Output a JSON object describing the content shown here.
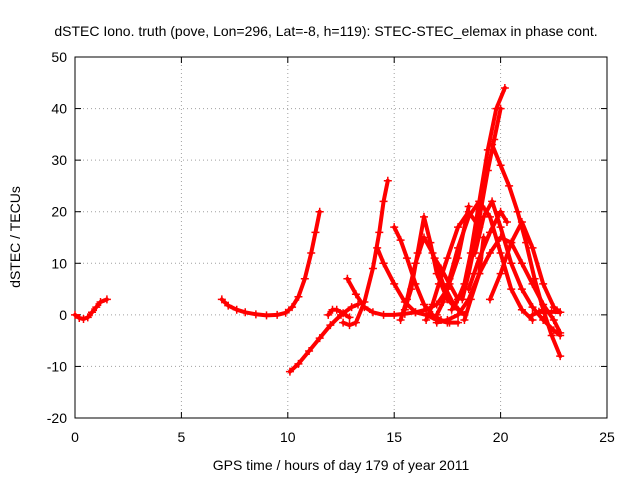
{
  "chart_data": {
    "type": "scatter",
    "title": "dSTEC Iono. truth (pove, Lon=296, Lat=-8, h=119): STEC-STEC_elemax in phase cont.",
    "xlabel": "GPS time / hours of day 179 of year 2011",
    "ylabel": "dSTEC  / TECUs",
    "xlim": [
      0,
      25
    ],
    "ylim": [
      -20,
      50
    ],
    "xticks": [
      0,
      5,
      10,
      15,
      20,
      25
    ],
    "yticks": [
      -20,
      -10,
      0,
      10,
      20,
      30,
      40,
      50
    ],
    "grid": true,
    "marker": "plus",
    "color": "#ff0000",
    "arcs": [
      {
        "x": [
          0.0,
          0.2,
          0.4,
          0.6,
          0.8,
          1.0,
          1.2,
          1.5
        ],
        "y": [
          0.0,
          -0.6,
          -0.8,
          -0.5,
          0.5,
          1.5,
          2.5,
          3.0
        ]
      },
      {
        "x": [
          6.9,
          7.2,
          7.6,
          8.0,
          8.5,
          9.0,
          9.5,
          9.9,
          10.2,
          10.5,
          10.8,
          11.1,
          11.3,
          11.5
        ],
        "y": [
          3.0,
          1.8,
          1.0,
          0.5,
          0.1,
          -0.1,
          0.0,
          0.4,
          1.5,
          3.5,
          7.0,
          12.0,
          16.0,
          20.0
        ]
      },
      {
        "x": [
          10.1,
          10.5,
          11.0,
          11.5,
          12.0,
          12.5,
          13.0,
          13.3
        ],
        "y": [
          -11.0,
          -9.5,
          -7.0,
          -4.5,
          -2.0,
          0.0,
          1.5,
          2.0
        ]
      },
      {
        "x": [
          11.9,
          12.1,
          12.3,
          12.6,
          12.9
        ],
        "y": [
          0.0,
          1.0,
          1.0,
          0.3,
          -0.5
        ]
      },
      {
        "x": [
          12.6,
          12.9,
          13.2,
          13.6,
          14.0,
          14.3,
          14.5,
          14.7
        ],
        "y": [
          -1.5,
          -2.0,
          -1.5,
          2.5,
          9.0,
          16.0,
          22.0,
          26.0
        ]
      },
      {
        "x": [
          12.8,
          13.2,
          13.6,
          14.0,
          14.5,
          15.0,
          15.5,
          16.0,
          16.5,
          17.0,
          17.5,
          18.0,
          18.5
        ],
        "y": [
          7.0,
          4.0,
          1.5,
          0.5,
          0.0,
          0.0,
          0.2,
          0.5,
          1.0,
          2.0,
          5.0,
          11.0,
          21.0
        ]
      },
      {
        "x": [
          14.2,
          14.5,
          15.0,
          15.5,
          16.0,
          16.5,
          17.0,
          17.5,
          18.0
        ],
        "y": [
          13.0,
          10.0,
          6.0,
          2.5,
          0.5,
          0.0,
          -1.0,
          -1.5,
          -1.5
        ]
      },
      {
        "x": [
          15.0,
          15.3,
          15.6,
          16.0,
          16.4,
          16.8,
          17.2,
          17.6
        ],
        "y": [
          17.0,
          14.5,
          11.0,
          6.0,
          2.0,
          0.0,
          -1.0,
          -1.5
        ]
      },
      {
        "x": [
          15.3,
          15.6,
          16.0,
          16.4,
          16.8,
          17.3,
          17.8,
          18.3
        ],
        "y": [
          -1.0,
          3.0,
          10.0,
          15.0,
          12.0,
          6.0,
          2.0,
          0.0
        ]
      },
      {
        "x": [
          15.5,
          15.8,
          16.1,
          16.4,
          16.7,
          17.0,
          17.5,
          18.0
        ],
        "y": [
          1.0,
          5.0,
          12.0,
          19.0,
          14.0,
          8.0,
          3.0,
          1.0
        ]
      },
      {
        "x": [
          16.5,
          16.8,
          17.1,
          17.5,
          18.0,
          18.5,
          19.0
        ],
        "y": [
          -1.0,
          2.0,
          6.0,
          11.0,
          17.0,
          20.0,
          17.0
        ]
      },
      {
        "x": [
          16.9,
          17.2,
          17.6,
          18.0
        ],
        "y": [
          11.0,
          9.0,
          6.0,
          3.0
        ]
      },
      {
        "x": [
          17.0,
          17.3,
          17.6,
          18.0,
          18.5,
          19.0,
          19.5,
          20.0,
          20.5,
          21.0,
          21.5
        ],
        "y": [
          0.0,
          2.5,
          7.0,
          13.0,
          19.0,
          22.0,
          19.0,
          12.0,
          5.0,
          1.0,
          -1.0
        ]
      },
      {
        "x": [
          17.0,
          17.5,
          18.0,
          18.5,
          19.0,
          19.2
        ],
        "y": [
          -1.5,
          -1.0,
          0.0,
          3.0,
          8.0,
          15.0
        ]
      },
      {
        "x": [
          17.7,
          18.0,
          18.3,
          18.6,
          19.0,
          19.4,
          19.8,
          20.2
        ],
        "y": [
          1.0,
          3.0,
          6.0,
          12.0,
          22.0,
          32.0,
          40.0,
          44.0
        ]
      },
      {
        "x": [
          18.2,
          18.5,
          18.8,
          19.1,
          19.4,
          19.7,
          20.0
        ],
        "y": [
          3.0,
          8.0,
          14.0,
          21.0,
          28.0,
          34.0,
          40.0
        ]
      },
      {
        "x": [
          18.3,
          18.6,
          19.0,
          19.5,
          20.0,
          20.5,
          21.0,
          21.5,
          22.0,
          22.5,
          22.8
        ],
        "y": [
          -1.0,
          3.0,
          8.0,
          12.0,
          15.0,
          14.0,
          10.0,
          6.0,
          2.0,
          -1.0,
          -3.5
        ]
      },
      {
        "x": [
          18.5,
          19.0,
          19.5,
          20.0,
          20.3
        ],
        "y": [
          5.0,
          11.0,
          16.0,
          20.0,
          18.0
        ]
      },
      {
        "x": [
          18.8,
          19.2,
          19.6,
          20.0,
          20.5,
          21.0,
          21.5,
          22.0,
          22.5,
          22.8
        ],
        "y": [
          12.0,
          19.0,
          22.0,
          17.0,
          10.0,
          5.0,
          1.5,
          -1.0,
          -3.0,
          -4.0
        ]
      },
      {
        "x": [
          19.6,
          20.0,
          20.4,
          20.8,
          21.2,
          21.6,
          22.0,
          22.4,
          22.8
        ],
        "y": [
          33.0,
          29.0,
          25.0,
          20.0,
          14.0,
          7.0,
          1.0,
          -4.0,
          -8.0
        ]
      },
      {
        "x": [
          19.5,
          20.0,
          20.5,
          21.0,
          21.5,
          22.0,
          22.5,
          22.8
        ],
        "y": [
          3.0,
          8.0,
          14.0,
          18.0,
          13.0,
          6.0,
          1.5,
          0.5
        ]
      },
      {
        "x": [
          21.5,
          21.8,
          22.1,
          22.4,
          22.8
        ],
        "y": [
          0.0,
          0.6,
          0.5,
          0.6,
          0.5
        ]
      }
    ]
  }
}
